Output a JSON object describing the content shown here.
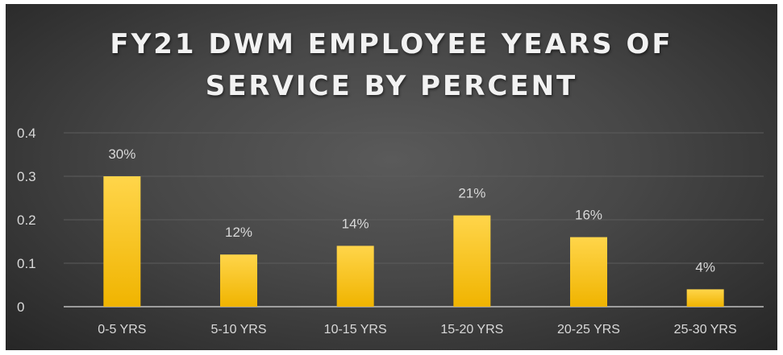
{
  "chart_data": {
    "type": "bar",
    "title": "FY21 DWM EMPLOYEE YEARS OF SERVICE BY PERCENT",
    "title_lines": [
      "FY21 DWM EMPLOYEE YEARS OF",
      "SERVICE BY PERCENT"
    ],
    "categories": [
      "0-5 YRS",
      "5-10 YRS",
      "10-15 YRS",
      "15-20 YRS",
      "20-25 YRS",
      "25-30 YRS"
    ],
    "values": [
      0.3,
      0.12,
      0.14,
      0.21,
      0.16,
      0.04
    ],
    "data_labels": [
      "30%",
      "12%",
      "14%",
      "21%",
      "16%",
      "4%"
    ],
    "ylim": [
      0,
      0.4
    ],
    "yticks": [
      0,
      0.1,
      0.2,
      0.3,
      0.4
    ],
    "ytick_labels": [
      "0",
      "0.1",
      "0.2",
      "0.3",
      "0.4"
    ],
    "grid": true,
    "legend": "none",
    "colors": {
      "bar_top": "#ffd54a",
      "bar_bottom": "#f0b400",
      "background": "#404040",
      "text": "#d9d9d9",
      "title": "#f2f2f2",
      "gridline": "#5c5c5c",
      "axis": "#bfbfbf"
    }
  }
}
